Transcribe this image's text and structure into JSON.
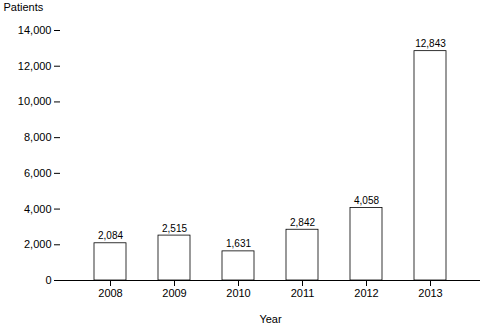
{
  "chart_data": {
    "type": "bar",
    "x_label": "Year",
    "y_label": "Patients",
    "categories": [
      "2008",
      "2009",
      "2010",
      "2011",
      "2012",
      "2013"
    ],
    "values": [
      2084,
      2515,
      1631,
      2842,
      4058,
      12843
    ],
    "value_labels": [
      "2,084",
      "2,515",
      "1,631",
      "2,842",
      "4,058",
      "12,843"
    ],
    "data_labels": true,
    "color": "#ffffff",
    "ylim": [
      0,
      14000
    ],
    "yticks": [
      0,
      {
        "value": 2000,
        "label": "2,000"
      },
      {
        "value": 4000,
        "label": "4,000"
      },
      {
        "value": 6000,
        "label": "6,000"
      },
      {
        "value": 8000,
        "label": "8,000"
      },
      {
        "value": 10000,
        "label": "10,000"
      },
      {
        "value": 12000,
        "label": "12,000"
      },
      {
        "value": 14000,
        "label": "14,000"
      }
    ],
    "grid": false
  }
}
